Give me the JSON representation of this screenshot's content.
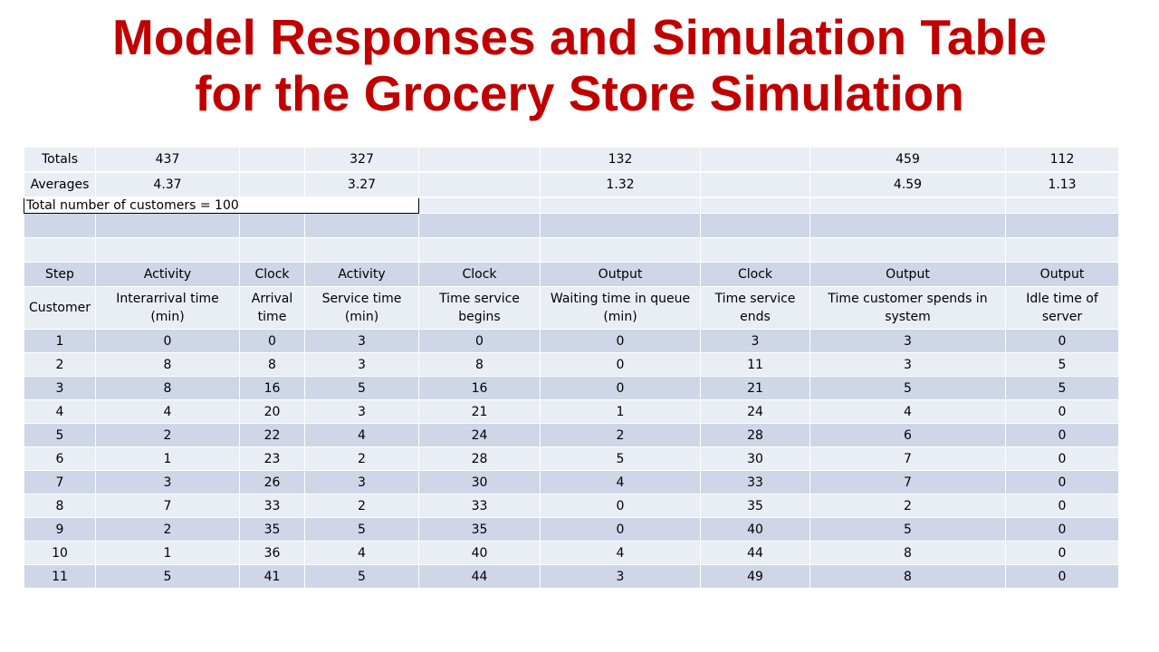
{
  "title": "Model Responses and Simulation Table for the Grocery Store Simulation",
  "summary": {
    "totals": [
      "Totals",
      "437",
      "",
      "327",
      "",
      "132",
      "",
      "459",
      "112"
    ],
    "averages": [
      "Averages",
      "4.37",
      "",
      "3.27",
      "",
      "1.32",
      "",
      "4.59",
      "1.13"
    ],
    "customer_count": "Total number of customers = 100"
  },
  "header_row_1": [
    "Step",
    "Activity",
    "Clock",
    "Activity",
    "Clock",
    "Output",
    "Clock",
    "Output",
    "Output"
  ],
  "header_row_2": [
    "Customer",
    "Interarrival time (min)",
    "Arrival time",
    "Service time (min)",
    "Time service begins",
    "Waiting time in queue (min)",
    "Time service ends",
    "Time customer spends in system",
    "Idle time of server"
  ],
  "rows": [
    [
      "1",
      "0",
      "0",
      "3",
      "0",
      "0",
      "3",
      "3",
      "0"
    ],
    [
      "2",
      "8",
      "8",
      "3",
      "8",
      "0",
      "11",
      "3",
      "5"
    ],
    [
      "3",
      "8",
      "16",
      "5",
      "16",
      "0",
      "21",
      "5",
      "5"
    ],
    [
      "4",
      "4",
      "20",
      "3",
      "21",
      "1",
      "24",
      "4",
      "0"
    ],
    [
      "5",
      "2",
      "22",
      "4",
      "24",
      "2",
      "28",
      "6",
      "0"
    ],
    [
      "6",
      "1",
      "23",
      "2",
      "28",
      "5",
      "30",
      "7",
      "0"
    ],
    [
      "7",
      "3",
      "26",
      "3",
      "30",
      "4",
      "33",
      "7",
      "0"
    ],
    [
      "8",
      "7",
      "33",
      "2",
      "33",
      "0",
      "35",
      "2",
      "0"
    ],
    [
      "9",
      "2",
      "35",
      "5",
      "35",
      "0",
      "40",
      "5",
      "0"
    ],
    [
      "10",
      "1",
      "36",
      "4",
      "40",
      "4",
      "44",
      "8",
      "0"
    ],
    [
      "11",
      "5",
      "41",
      "5",
      "44",
      "3",
      "49",
      "8",
      "0"
    ]
  ]
}
